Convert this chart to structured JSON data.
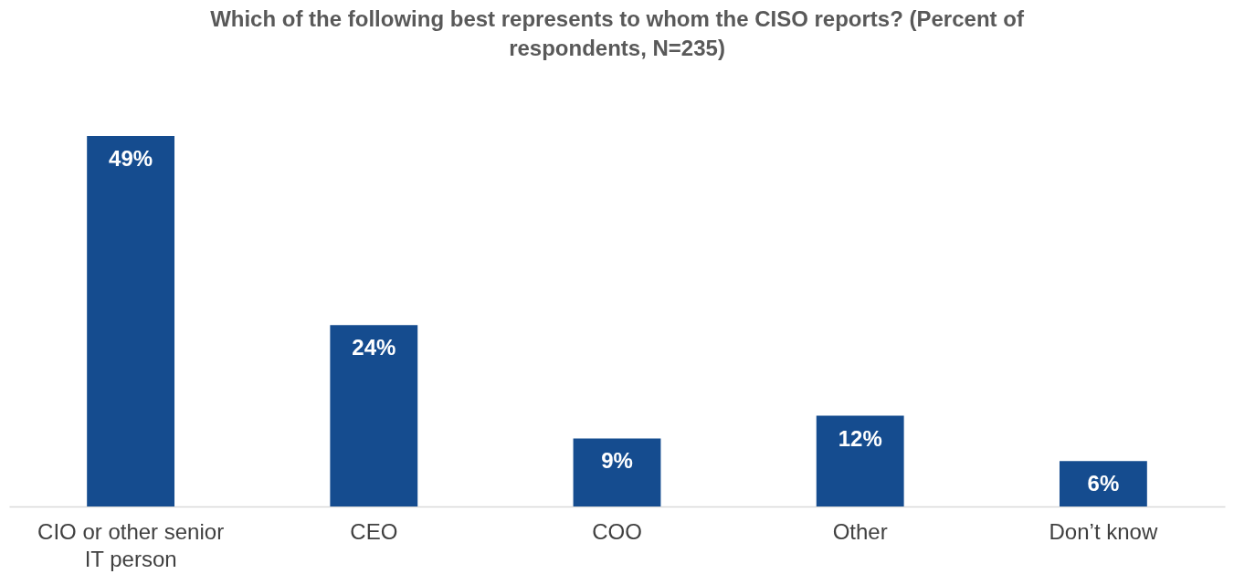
{
  "chart_data": {
    "type": "bar",
    "title": "Which of the following best represents to whom the CISO reports? (Percent of respondents, N=235)",
    "categories": [
      "CIO or other senior IT person",
      "CEO",
      "COO",
      "Other",
      "Don’t know"
    ],
    "values": [
      49,
      24,
      9,
      12,
      6
    ],
    "value_labels": [
      "49%",
      "24%",
      "9%",
      "12%",
      "6%"
    ],
    "color": "#154c8f"
  }
}
